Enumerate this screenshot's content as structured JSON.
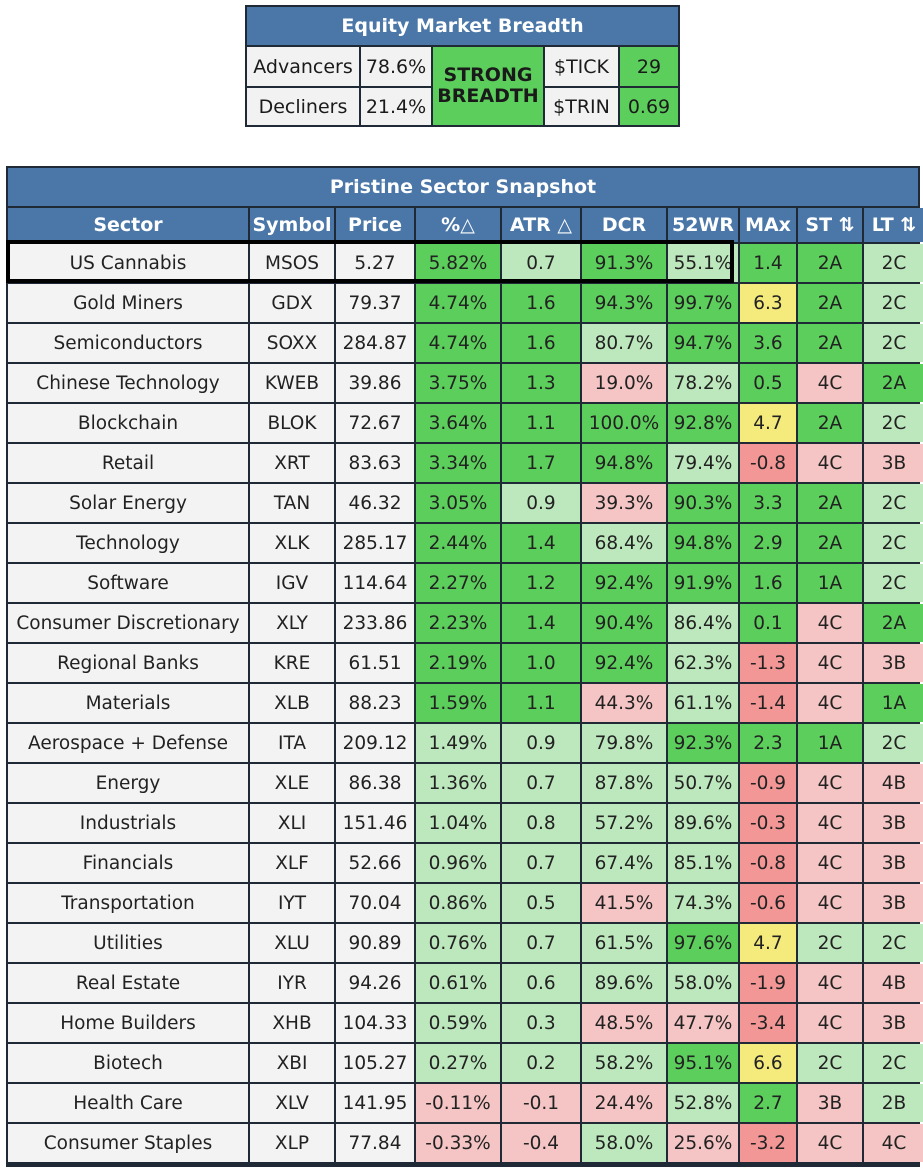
{
  "breadth": {
    "title": "Equity Market Breadth",
    "advancers_label": "Advancers",
    "advancers_value": "78.6%",
    "decliners_label": "Decliners",
    "decliners_value": "21.4%",
    "status_line1": "STRONG",
    "status_line2": "BREADTH",
    "tick_label": "$TICK",
    "tick_value": "29",
    "trin_label": "$TRIN",
    "trin_value": "0.69"
  },
  "snapshot": {
    "title": "Pristine Sector Snapshot",
    "headers": [
      "Sector",
      "Symbol",
      "Price",
      "%△",
      "ATR △",
      "DCR",
      "52WR",
      "MAx",
      "ST ⇅",
      "LT ⇅"
    ],
    "highlighted_row": 0,
    "rows": [
      {
        "sector": "US Cannabis",
        "symbol": "MSOS",
        "price": "5.27",
        "pct": "5.82%",
        "atr": "0.7",
        "dcr": "91.3%",
        "wr": "55.1%",
        "max": "1.4",
        "st": "2A",
        "lt": "2C"
      },
      {
        "sector": "Gold Miners",
        "symbol": "GDX",
        "price": "79.37",
        "pct": "4.74%",
        "atr": "1.6",
        "dcr": "94.3%",
        "wr": "99.7%",
        "max": "6.3",
        "st": "2A",
        "lt": "2C"
      },
      {
        "sector": "Semiconductors",
        "symbol": "SOXX",
        "price": "284.87",
        "pct": "4.74%",
        "atr": "1.6",
        "dcr": "80.7%",
        "wr": "94.7%",
        "max": "3.6",
        "st": "2A",
        "lt": "2C"
      },
      {
        "sector": "Chinese Technology",
        "symbol": "KWEB",
        "price": "39.86",
        "pct": "3.75%",
        "atr": "1.3",
        "dcr": "19.0%",
        "wr": "78.2%",
        "max": "0.5",
        "st": "4C",
        "lt": "2A"
      },
      {
        "sector": "Blockchain",
        "symbol": "BLOK",
        "price": "72.67",
        "pct": "3.64%",
        "atr": "1.1",
        "dcr": "100.0%",
        "wr": "92.8%",
        "max": "4.7",
        "st": "2A",
        "lt": "2C"
      },
      {
        "sector": "Retail",
        "symbol": "XRT",
        "price": "83.63",
        "pct": "3.34%",
        "atr": "1.7",
        "dcr": "94.8%",
        "wr": "79.4%",
        "max": "-0.8",
        "st": "4C",
        "lt": "3B"
      },
      {
        "sector": "Solar Energy",
        "symbol": "TAN",
        "price": "46.32",
        "pct": "3.05%",
        "atr": "0.9",
        "dcr": "39.3%",
        "wr": "90.3%",
        "max": "3.3",
        "st": "2A",
        "lt": "2C"
      },
      {
        "sector": "Technology",
        "symbol": "XLK",
        "price": "285.17",
        "pct": "2.44%",
        "atr": "1.4",
        "dcr": "68.4%",
        "wr": "94.8%",
        "max": "2.9",
        "st": "2A",
        "lt": "2C"
      },
      {
        "sector": "Software",
        "symbol": "IGV",
        "price": "114.64",
        "pct": "2.27%",
        "atr": "1.2",
        "dcr": "92.4%",
        "wr": "91.9%",
        "max": "1.6",
        "st": "1A",
        "lt": "2C"
      },
      {
        "sector": "Consumer Discretionary",
        "symbol": "XLY",
        "price": "233.86",
        "pct": "2.23%",
        "atr": "1.4",
        "dcr": "90.4%",
        "wr": "86.4%",
        "max": "0.1",
        "st": "4C",
        "lt": "2A"
      },
      {
        "sector": "Regional Banks",
        "symbol": "KRE",
        "price": "61.51",
        "pct": "2.19%",
        "atr": "1.0",
        "dcr": "92.4%",
        "wr": "62.3%",
        "max": "-1.3",
        "st": "4C",
        "lt": "3B"
      },
      {
        "sector": "Materials",
        "symbol": "XLB",
        "price": "88.23",
        "pct": "1.59%",
        "atr": "1.1",
        "dcr": "44.3%",
        "wr": "61.1%",
        "max": "-1.4",
        "st": "4C",
        "lt": "1A"
      },
      {
        "sector": "Aerospace + Defense",
        "symbol": "ITA",
        "price": "209.12",
        "pct": "1.49%",
        "atr": "0.9",
        "dcr": "79.8%",
        "wr": "92.3%",
        "max": "2.3",
        "st": "1A",
        "lt": "2C"
      },
      {
        "sector": "Energy",
        "symbol": "XLE",
        "price": "86.38",
        "pct": "1.36%",
        "atr": "0.7",
        "dcr": "87.8%",
        "wr": "50.7%",
        "max": "-0.9",
        "st": "4C",
        "lt": "4B"
      },
      {
        "sector": "Industrials",
        "symbol": "XLI",
        "price": "151.46",
        "pct": "1.04%",
        "atr": "0.8",
        "dcr": "57.2%",
        "wr": "89.6%",
        "max": "-0.3",
        "st": "4C",
        "lt": "3B"
      },
      {
        "sector": "Financials",
        "symbol": "XLF",
        "price": "52.66",
        "pct": "0.96%",
        "atr": "0.7",
        "dcr": "67.4%",
        "wr": "85.1%",
        "max": "-0.8",
        "st": "4C",
        "lt": "3B"
      },
      {
        "sector": "Transportation",
        "symbol": "IYT",
        "price": "70.04",
        "pct": "0.86%",
        "atr": "0.5",
        "dcr": "41.5%",
        "wr": "74.3%",
        "max": "-0.6",
        "st": "4C",
        "lt": "3B"
      },
      {
        "sector": "Utilities",
        "symbol": "XLU",
        "price": "90.89",
        "pct": "0.76%",
        "atr": "0.7",
        "dcr": "61.5%",
        "wr": "97.6%",
        "max": "4.7",
        "st": "2C",
        "lt": "2C"
      },
      {
        "sector": "Real Estate",
        "symbol": "IYR",
        "price": "94.26",
        "pct": "0.61%",
        "atr": "0.6",
        "dcr": "89.6%",
        "wr": "58.0%",
        "max": "-1.9",
        "st": "4C",
        "lt": "4B"
      },
      {
        "sector": "Home Builders",
        "symbol": "XHB",
        "price": "104.33",
        "pct": "0.59%",
        "atr": "0.3",
        "dcr": "48.5%",
        "wr": "47.7%",
        "max": "-3.4",
        "st": "4C",
        "lt": "3B"
      },
      {
        "sector": "Biotech",
        "symbol": "XBI",
        "price": "105.27",
        "pct": "0.27%",
        "atr": "0.2",
        "dcr": "58.2%",
        "wr": "95.1%",
        "max": "6.6",
        "st": "2C",
        "lt": "2C"
      },
      {
        "sector": "Health Care",
        "symbol": "XLV",
        "price": "141.95",
        "pct": "-0.11%",
        "atr": "-0.1",
        "dcr": "24.4%",
        "wr": "52.8%",
        "max": "2.7",
        "st": "3B",
        "lt": "2B"
      },
      {
        "sector": "Consumer Staples",
        "symbol": "XLP",
        "price": "77.84",
        "pct": "-0.33%",
        "atr": "-0.4",
        "dcr": "58.0%",
        "wr": "25.6%",
        "max": "-3.2",
        "st": "4C",
        "lt": "4C"
      }
    ]
  },
  "colors": {
    "header_blue": "#4a77a8",
    "border": "#1f2a36",
    "dark_green": "#5cce5c",
    "light_green": "#bde8bd",
    "light_red": "#f5c4c4",
    "dark_red": "#f29696",
    "yellow": "#f5ea7c",
    "neutral": "#f3f3f3"
  }
}
